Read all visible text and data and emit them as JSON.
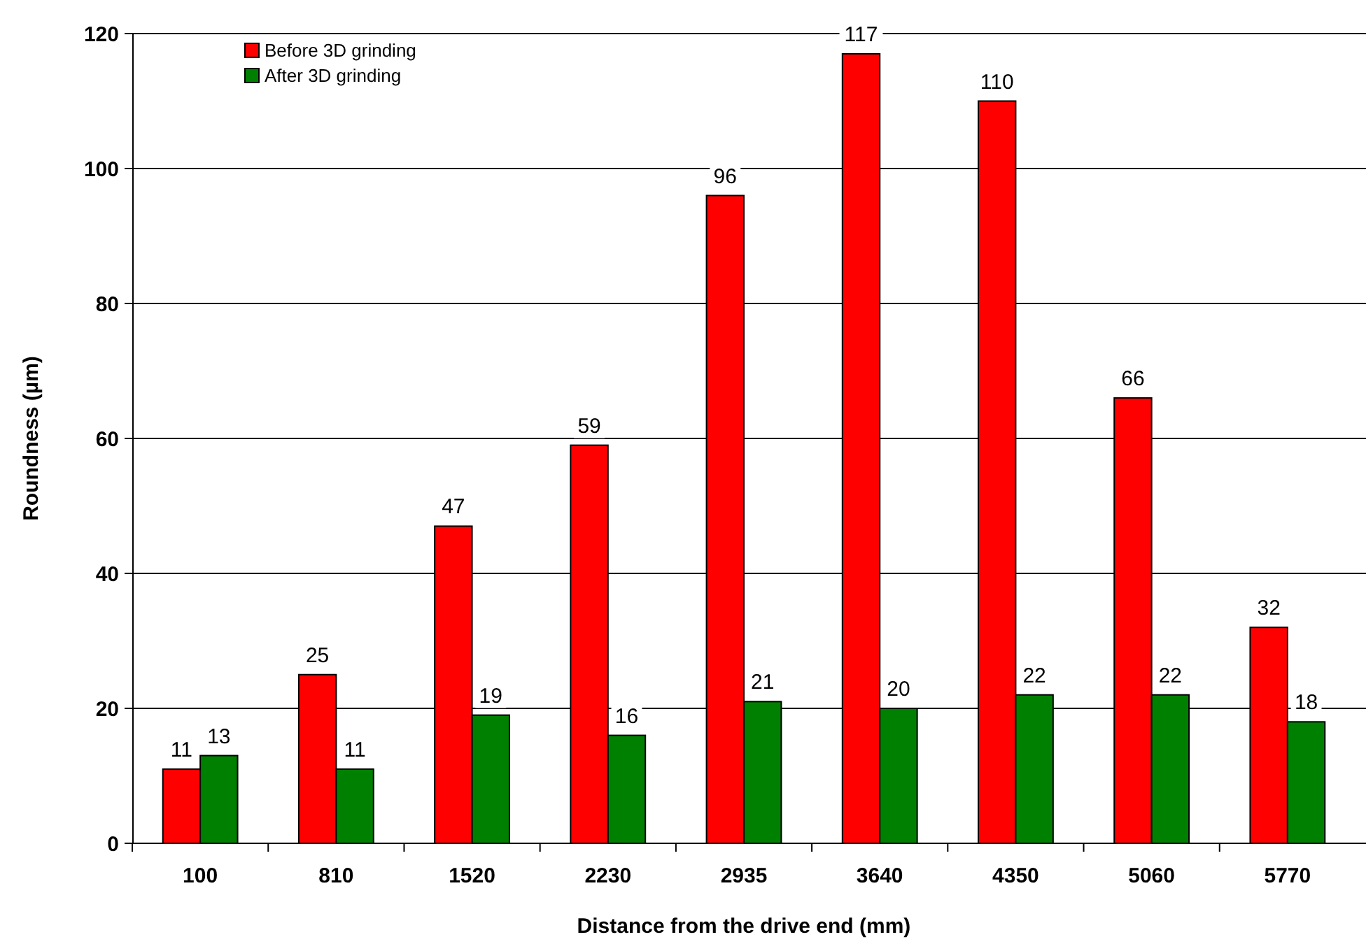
{
  "chart_data": {
    "type": "bar",
    "xlabel": "Distance from the drive end (mm)",
    "ylabel": "Roundness (µm)",
    "categories": [
      "100",
      "810",
      "1520",
      "2230",
      "2935",
      "3640",
      "4350",
      "5060",
      "5770"
    ],
    "series": [
      {
        "name": "Before 3D grinding",
        "color": "#ff0000",
        "values": [
          11,
          25,
          47,
          59,
          96,
          117,
          110,
          66,
          32
        ]
      },
      {
        "name": "After 3D grinding",
        "color": "#008000",
        "values": [
          13,
          11,
          19,
          16,
          21,
          20,
          22,
          22,
          18
        ]
      }
    ],
    "ylim": [
      0,
      120
    ],
    "yticks": [
      0,
      20,
      40,
      60,
      80,
      100,
      120
    ],
    "grid": "y",
    "legend": "top left",
    "data_labels": true
  }
}
